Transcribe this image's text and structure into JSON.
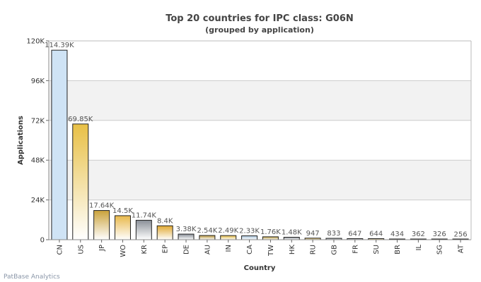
{
  "chart_data": {
    "type": "bar",
    "title": "Top 20 countries for IPC class: G06N",
    "subtitle": "(grouped by application)",
    "xlabel": "Country",
    "ylabel": "Applications",
    "ylim": [
      0,
      120000
    ],
    "yticks": [
      0,
      24000,
      48000,
      72000,
      96000,
      120000
    ],
    "ytick_labels": [
      "0",
      "24K",
      "48K",
      "72K",
      "96K",
      "120K"
    ],
    "categories": [
      "CN",
      "US",
      "JP",
      "WO",
      "KR",
      "EP",
      "DE",
      "AU",
      "IN",
      "CA",
      "TW",
      "HK",
      "RU",
      "GB",
      "FR",
      "SU",
      "BR",
      "IL",
      "SG",
      "AT"
    ],
    "values": [
      114390,
      69850,
      17640,
      14500,
      11740,
      8400,
      3380,
      2540,
      2490,
      2330,
      1760,
      1480,
      947,
      833,
      647,
      644,
      434,
      362,
      326,
      256
    ],
    "value_labels": [
      "114.39K",
      "69.85K",
      "17.64K",
      "14.5K",
      "11.74K",
      "8.4K",
      "3.38K",
      "2.54K",
      "2.49K",
      "2.33K",
      "1.76K",
      "1.48K",
      "947",
      "833",
      "647",
      "644",
      "434",
      "362",
      "326",
      "256"
    ],
    "colors": [
      "#cfe3f5",
      "#e8c046",
      "#caa23a",
      "#e8b84a",
      "#8a9098",
      "#e0a830",
      "#8a9098",
      "#b8963a",
      "#e0b840",
      "#a8c4dc",
      "#b89838",
      "#8a9098",
      "#c8a038",
      "#8a9098",
      "#8a9098",
      "#c8a038",
      "#b89838",
      "#3a3a3a",
      "#8a9098",
      "#8a9098"
    ],
    "grid": true,
    "legend": "none"
  },
  "footer": {
    "credit": "PatBase Analytics"
  }
}
